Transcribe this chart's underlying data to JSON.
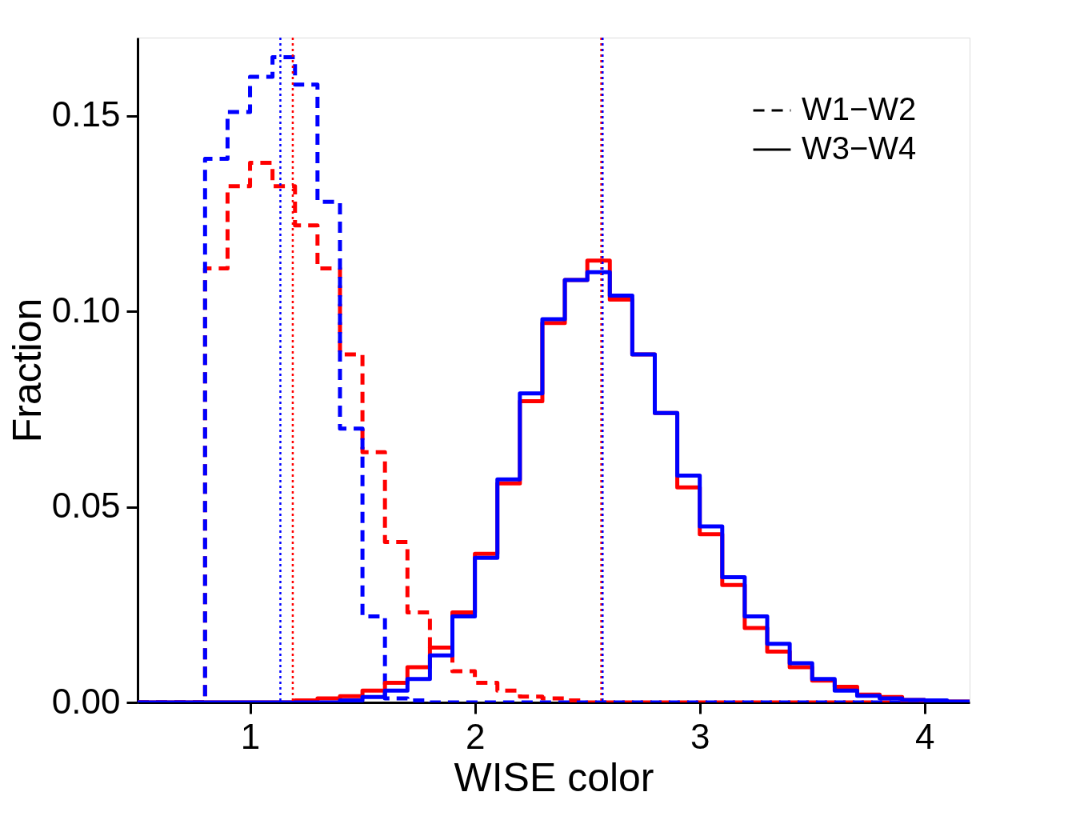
{
  "chart_data": {
    "type": "histogram",
    "xlabel": "WISE color",
    "ylabel": "Fraction",
    "bins": [
      0.5,
      0.6,
      0.7,
      0.8,
      0.9,
      1.0,
      1.1,
      1.2,
      1.3,
      1.4,
      1.5,
      1.6,
      1.7,
      1.8,
      1.9,
      2.0,
      2.1,
      2.2,
      2.3,
      2.4,
      2.5,
      2.6,
      2.7,
      2.8,
      2.9,
      3.0,
      3.1,
      3.2,
      3.3,
      3.4,
      3.5,
      3.6,
      3.7,
      3.8,
      3.9,
      4.0,
      4.1,
      4.2
    ],
    "series": [
      {
        "color": "#ff0000",
        "line_style": "dashed",
        "values": [
          0,
          0,
          0,
          0.111,
          0.132,
          0.138,
          0.132,
          0.122,
          0.111,
          0.089,
          0.064,
          0.041,
          0.023,
          0.014,
          0.008,
          0.005,
          0.003,
          0.0015,
          0.001,
          0.0005,
          0,
          0,
          0,
          0,
          0,
          0,
          0,
          0,
          0,
          0,
          0,
          0,
          0,
          0,
          0,
          0,
          0
        ]
      },
      {
        "color": "#0000ff",
        "line_style": "dashed",
        "values": [
          0,
          0,
          0,
          0.139,
          0.151,
          0.16,
          0.165,
          0.158,
          0.128,
          0.07,
          0.022,
          0.001,
          0.0005,
          0,
          0,
          0,
          0,
          0,
          0,
          0,
          0,
          0,
          0,
          0,
          0,
          0,
          0,
          0,
          0,
          0,
          0,
          0,
          0,
          0,
          0,
          0,
          0
        ]
      },
      {
        "color": "#ff0000",
        "line_style": "solid",
        "values": [
          0,
          0,
          0,
          0,
          0,
          0,
          0,
          0.0005,
          0.001,
          0.0016,
          0.003,
          0.005,
          0.009,
          0.014,
          0.023,
          0.038,
          0.056,
          0.077,
          0.097,
          0.108,
          0.113,
          0.103,
          0.089,
          0.074,
          0.055,
          0.043,
          0.03,
          0.019,
          0.013,
          0.009,
          0.0056,
          0.004,
          0.002,
          0.0014,
          0.0006,
          0.0003,
          0.0002
        ]
      },
      {
        "color": "#0000ff",
        "line_style": "solid",
        "values": [
          0,
          0,
          0,
          0,
          0,
          0,
          0,
          0,
          0,
          0.0005,
          0.0014,
          0.003,
          0.006,
          0.012,
          0.022,
          0.037,
          0.057,
          0.079,
          0.098,
          0.108,
          0.11,
          0.104,
          0.089,
          0.074,
          0.058,
          0.045,
          0.032,
          0.022,
          0.015,
          0.01,
          0.006,
          0.003,
          0.0017,
          0.001,
          0.0006,
          0.0005,
          0.0002
        ]
      }
    ],
    "ref_lines": [
      {
        "axis": "x",
        "value": 1.135,
        "color": "#0000ff",
        "line_style": "dotted"
      },
      {
        "axis": "x",
        "value": 1.19,
        "color": "#ff0000",
        "line_style": "dotted"
      },
      {
        "axis": "x",
        "value": 2.562,
        "color": "#ff0000",
        "line_style": "dotted"
      },
      {
        "axis": "x",
        "value": 2.568,
        "color": "#0000ff",
        "line_style": "dotted"
      }
    ],
    "xlim": [
      0.5,
      4.2
    ],
    "ylim": [
      0,
      0.17
    ],
    "xticks": [
      1,
      2,
      3,
      4
    ],
    "yticks": [
      {
        "value": 0,
        "label": "0.00"
      },
      {
        "value": 0.05,
        "label": "0.05"
      },
      {
        "value": 0.1,
        "label": "0.10"
      },
      {
        "value": 0.15,
        "label": "0.15"
      }
    ],
    "annotations": [
      "W1−W2",
      "W3−W4"
    ],
    "grid": false
  }
}
